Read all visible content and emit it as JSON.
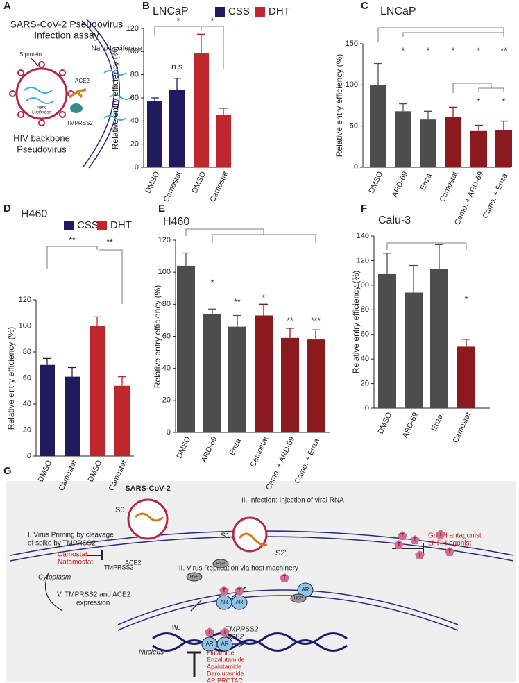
{
  "chart_data": [
    {
      "type": "bar",
      "panel": "B",
      "title": "LNCaP",
      "y_label": "Relative entry efficiency (%)",
      "categories": [
        "DMSO",
        "Camostat",
        "DMSO",
        "Camostat"
      ],
      "series": [
        {
          "name": "CSS",
          "color": "#1f1b5c",
          "values": [
            57,
            67,
            null,
            null
          ],
          "errors": [
            3,
            10,
            null,
            null
          ]
        },
        {
          "name": "DHT",
          "color": "#c0272d",
          "values": [
            null,
            null,
            99,
            45
          ],
          "errors": [
            null,
            null,
            16,
            6
          ]
        }
      ],
      "ylim": [
        0,
        120
      ],
      "yticks": [
        0,
        20,
        40,
        60,
        80,
        100,
        120
      ],
      "annotations": [
        "*",
        "*",
        "n.s"
      ]
    },
    {
      "type": "bar",
      "panel": "C",
      "title": "LNCaP",
      "y_label": "Relative entry efficiency (%)",
      "categories": [
        "DMSO",
        "ARD-69",
        "Enza.",
        "Camostat",
        "Camo. + ARD-69",
        "Camo. + Enza."
      ],
      "values": [
        100,
        68,
        58,
        61,
        44,
        45
      ],
      "errors": [
        26,
        9,
        10,
        12,
        7,
        11
      ],
      "colors": [
        "#4d4d4d",
        "#4d4d4d",
        "#4d4d4d",
        "#8b1a1f",
        "#8b1a1f",
        "#8b1a1f"
      ],
      "ylim": [
        0,
        150
      ],
      "yticks": [
        0,
        50,
        100,
        150
      ],
      "annotations": [
        "*",
        "*",
        "*",
        "*",
        "**",
        "*",
        "*"
      ]
    },
    {
      "type": "bar",
      "panel": "D",
      "title": "H460",
      "y_label": "Relative entry efficiency (%)",
      "categories": [
        "DMSO",
        "Camostat",
        "DMSO",
        "Camostat"
      ],
      "series": [
        {
          "name": "CSS",
          "color": "#1f1b5c",
          "values": [
            70,
            61,
            null,
            null
          ],
          "errors": [
            5,
            7,
            null,
            null
          ]
        },
        {
          "name": "DHT",
          "color": "#c0272d",
          "values": [
            null,
            null,
            100,
            54
          ],
          "errors": [
            null,
            null,
            7,
            7
          ]
        }
      ],
      "ylim": [
        0,
        120
      ],
      "yticks": [
        0,
        20,
        40,
        60,
        80,
        100,
        120
      ],
      "annotations": [
        "**",
        "**"
      ]
    },
    {
      "type": "bar",
      "panel": "E",
      "title": "H460",
      "y_label": "Relative entry efficiency (%)",
      "categories": [
        "DMSO",
        "ARD-69",
        "Enza.",
        "Camostat",
        "Camo. + ARD-69",
        "Camo. + Enza."
      ],
      "values": [
        104,
        74,
        66,
        73,
        59,
        58
      ],
      "errors": [
        8,
        3,
        7,
        7,
        6,
        6
      ],
      "colors": [
        "#4d4d4d",
        "#4d4d4d",
        "#4d4d4d",
        "#8b1a1f",
        "#8b1a1f",
        "#8b1a1f"
      ],
      "ylim": [
        0,
        120
      ],
      "yticks": [
        0,
        20,
        40,
        60,
        80,
        100,
        120
      ],
      "annotations": [
        "*",
        "**",
        "*",
        "**",
        "***"
      ]
    },
    {
      "type": "bar",
      "panel": "F",
      "title": "Calu-3",
      "y_label": "Relative entry efficiency (%)",
      "categories": [
        "DMSO",
        "ARD-69",
        "Enza.",
        "Camostat"
      ],
      "values": [
        109,
        94,
        113,
        50
      ],
      "errors": [
        17,
        22,
        20,
        6
      ],
      "colors": [
        "#4d4d4d",
        "#4d4d4d",
        "#4d4d4d",
        "#8b1a1f"
      ],
      "ylim": [
        0,
        140
      ],
      "yticks": [
        0,
        20,
        40,
        60,
        80,
        100,
        120,
        140
      ],
      "annotations": [
        "*"
      ]
    }
  ],
  "diagram_a": {
    "panel": "A",
    "title": [
      "SARS-CoV-2 Pseudovirus",
      "Infection assay"
    ],
    "s_protein": "S protein",
    "ace2": "ACE2",
    "nano_luciferase": "Nano Luciferase",
    "inner_luciferase": [
      "Nano",
      "Luciferase"
    ],
    "tmprss2": "TMPRSS2",
    "virus": [
      "HIV backbone",
      "Pseudovirus"
    ]
  },
  "diagram_g": {
    "panel": "G",
    "virus": "SARS-CoV-2",
    "s0": "S0",
    "s1": "S1",
    "s2": "S2'",
    "step1": [
      "I. Virus Priming by cleavage",
      "of spike by TMPRSS2"
    ],
    "step2": "II. Infection: Injection of viral RNA",
    "step3": "III. Virus Replication via host machinery",
    "step4": "IV.",
    "step5": [
      "V. TMPRSS2 and ACE2",
      "expression"
    ],
    "protease_inhibitors": [
      "Camostat",
      "Nafamostat"
    ],
    "tmprss2": "TMPRSS2",
    "ace2": "ACE2",
    "hormone_drugs": [
      "GnRH antagonist",
      "LHRH agonist"
    ],
    "cytoplasm": "Cytoplasm",
    "nucleus": "Nucleus",
    "hormone": "T",
    "receptor": "AR",
    "chaperone": "HSP",
    "genes": [
      "TMPRSS2",
      "ACE2"
    ],
    "ar_drugs": [
      "Flutamide",
      "Enzalutamide",
      "Apalutamide",
      "Darolutamide",
      "AR PROTAC"
    ]
  }
}
